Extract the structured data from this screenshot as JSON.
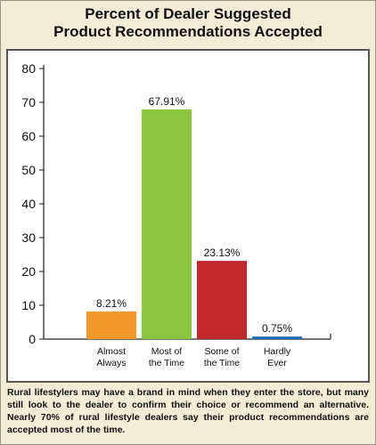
{
  "title_line1": "Percent of Dealer Suggested",
  "title_line2": "Product Recommendations Accepted",
  "caption": "Rural lifestylers may have a brand in mind when they enter the store, but many still look to the dealer to confirm their choice or recommend an alternative. Nearly 70% of rural lifestyle dealers say their product recommendations are accepted most of the time.",
  "chart_data": {
    "type": "bar",
    "title": "Percent of Dealer Suggested Product Recommendations Accepted",
    "xlabel": "",
    "ylabel": "",
    "ylim": [
      0,
      80
    ],
    "yticks": [
      0,
      10,
      20,
      30,
      40,
      50,
      60,
      70,
      80
    ],
    "grid": false,
    "categories": [
      [
        "Almost",
        "Always"
      ],
      [
        "Most of",
        "the Time"
      ],
      [
        "Some of",
        "the Time"
      ],
      [
        "Hardly",
        "Ever"
      ]
    ],
    "values": [
      8.21,
      67.91,
      23.13,
      0.75
    ],
    "value_labels": [
      "8.21%",
      "67.91%",
      "23.13%",
      "0.75%"
    ],
    "colors": [
      "#f29a2e",
      "#8cc63f",
      "#c1272d",
      "#1e6fb8"
    ]
  }
}
